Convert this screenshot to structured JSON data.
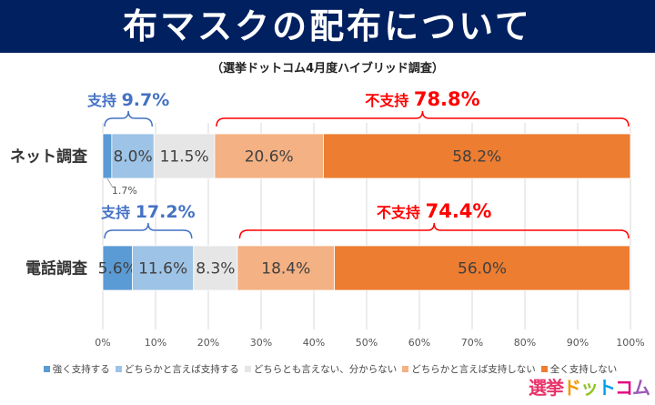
{
  "title": "布マスクの配布について",
  "subtitle": "（選挙ドットコム4月度ハイブリッド調査）",
  "logo": "選挙ドットコム",
  "chart_data": {
    "type": "bar",
    "orientation": "horizontal-stacked-100",
    "categories": [
      "ネット調査",
      "電話調査"
    ],
    "series": [
      {
        "name": "強く支持する",
        "color": "#5B9BD5",
        "values": [
          1.7,
          5.6
        ]
      },
      {
        "name": "どちらかと言えば支持する",
        "color": "#9DC3E6",
        "values": [
          8.0,
          11.6
        ]
      },
      {
        "name": "どちらとも言えない、分からない",
        "color": "#E7E6E6",
        "values": [
          11.5,
          8.3
        ]
      },
      {
        "name": "どちらかと言えば支持しない",
        "color": "#F4B183",
        "values": [
          20.6,
          18.4
        ]
      },
      {
        "name": "全く支持しない",
        "color": "#ED7D31",
        "values": [
          58.2,
          56.0
        ]
      }
    ],
    "data_labels": [
      [
        "1.7%",
        "8.0%",
        "11.5%",
        "20.6%",
        "58.2%"
      ],
      [
        "5.6%",
        "11.6%",
        "8.3%",
        "18.4%",
        "56.0%"
      ]
    ],
    "xticks": [
      "0%",
      "10%",
      "20%",
      "30%",
      "40%",
      "50%",
      "60%",
      "70%",
      "80%",
      "90%",
      "100%"
    ],
    "xlim": [
      0,
      100
    ],
    "grid": true,
    "legend_position": "bottom",
    "annotations": [
      {
        "label": "支持",
        "value": "9.7%",
        "color": "#4472C4"
      },
      {
        "label": "不支持",
        "value": "78.8%",
        "color": "#FF0000"
      },
      {
        "label": "支持",
        "value": "17.2%",
        "color": "#4472C4"
      },
      {
        "label": "不支持",
        "value": "74.4%",
        "color": "#FF0000"
      }
    ]
  }
}
